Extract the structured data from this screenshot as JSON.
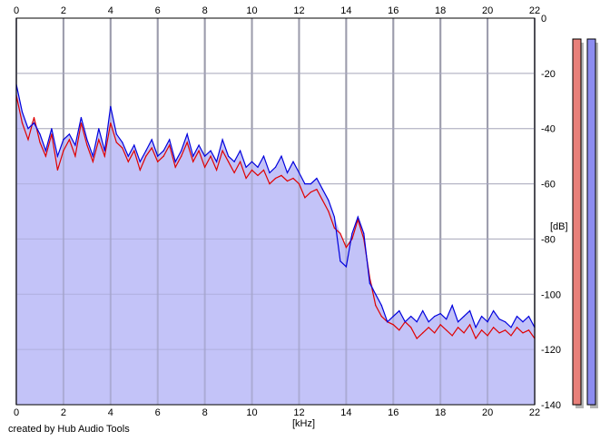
{
  "chart_data": {
    "type": "area",
    "x_axis": {
      "label": "[kHz]",
      "range": [
        0,
        22
      ],
      "ticks": [
        0,
        2,
        4,
        6,
        8,
        10,
        12,
        14,
        16,
        18,
        20,
        22
      ]
    },
    "y_axis": {
      "label": "[dB]",
      "range": [
        -140,
        0
      ],
      "ticks": [
        0,
        -20,
        -40,
        -60,
        -80,
        -100,
        -120,
        -140
      ]
    },
    "grid": true,
    "series": [
      {
        "channel_color": "#e8807a",
        "line_color": "#e00000",
        "x": [
          0,
          0.25,
          0.5,
          0.75,
          1,
          1.25,
          1.5,
          1.75,
          2,
          2.25,
          2.5,
          2.75,
          3,
          3.25,
          3.5,
          3.75,
          4,
          4.25,
          4.5,
          4.75,
          5,
          5.25,
          5.5,
          5.75,
          6,
          6.25,
          6.5,
          6.75,
          7,
          7.25,
          7.5,
          7.75,
          8,
          8.25,
          8.5,
          8.75,
          9,
          9.25,
          9.5,
          9.75,
          10,
          10.25,
          10.5,
          10.75,
          11,
          11.25,
          11.5,
          11.75,
          12,
          12.25,
          12.5,
          12.75,
          13,
          13.25,
          13.5,
          13.75,
          14,
          14.25,
          14.5,
          14.75,
          15,
          15.25,
          15.5,
          15.75,
          16,
          16.25,
          16.5,
          16.75,
          17,
          17.25,
          17.5,
          17.75,
          18,
          18.25,
          18.5,
          18.75,
          19,
          19.25,
          19.5,
          19.75,
          20,
          20.25,
          20.5,
          20.75,
          21,
          21.25,
          21.5,
          21.75,
          22
        ],
        "values": [
          -28,
          -38,
          -44,
          -36,
          -45,
          -50,
          -42,
          -55,
          -48,
          -44,
          -50,
          -38,
          -46,
          -52,
          -44,
          -50,
          -38,
          -45,
          -47,
          -52,
          -48,
          -55,
          -50,
          -47,
          -52,
          -50,
          -46,
          -54,
          -50,
          -45,
          -52,
          -48,
          -54,
          -50,
          -55,
          -48,
          -52,
          -56,
          -52,
          -58,
          -55,
          -57,
          -55,
          -60,
          -58,
          -57,
          -59,
          -58,
          -60,
          -65,
          -63,
          -62,
          -66,
          -70,
          -76,
          -78,
          -83,
          -80,
          -73,
          -80,
          -94,
          -104,
          -108,
          -110,
          -111,
          -113,
          -110,
          -112,
          -116,
          -114,
          -112,
          -114,
          -111,
          -113,
          -115,
          -112,
          -114,
          -111,
          -116,
          -113,
          -115,
          -112,
          -114,
          -113,
          -115,
          -112,
          -114,
          -113,
          -116
        ]
      },
      {
        "channel_color": "#8c8cf0",
        "line_color": "#0000dd",
        "x": [
          0,
          0.25,
          0.5,
          0.75,
          1,
          1.25,
          1.5,
          1.75,
          2,
          2.25,
          2.5,
          2.75,
          3,
          3.25,
          3.5,
          3.75,
          4,
          4.25,
          4.5,
          4.75,
          5,
          5.25,
          5.5,
          5.75,
          6,
          6.25,
          6.5,
          6.75,
          7,
          7.25,
          7.5,
          7.75,
          8,
          8.25,
          8.5,
          8.75,
          9,
          9.25,
          9.5,
          9.75,
          10,
          10.25,
          10.5,
          10.75,
          11,
          11.25,
          11.5,
          11.75,
          12,
          12.25,
          12.5,
          12.75,
          13,
          13.25,
          13.5,
          13.75,
          14,
          14.25,
          14.5,
          14.75,
          15,
          15.25,
          15.5,
          15.75,
          16,
          16.25,
          16.5,
          16.75,
          17,
          17.25,
          17.5,
          17.75,
          18,
          18.25,
          18.5,
          18.75,
          19,
          19.25,
          19.5,
          19.75,
          20,
          20.25,
          20.5,
          20.75,
          21,
          21.25,
          21.5,
          21.75,
          22
        ],
        "values": [
          -24,
          -34,
          -40,
          -38,
          -42,
          -48,
          -40,
          -50,
          -44,
          -42,
          -46,
          -36,
          -44,
          -50,
          -40,
          -48,
          -32,
          -42,
          -45,
          -50,
          -46,
          -52,
          -48,
          -44,
          -50,
          -48,
          -44,
          -52,
          -48,
          -42,
          -50,
          -46,
          -50,
          -48,
          -52,
          -44,
          -50,
          -52,
          -48,
          -54,
          -52,
          -54,
          -50,
          -56,
          -54,
          -50,
          -56,
          -52,
          -56,
          -60,
          -60,
          -58,
          -62,
          -66,
          -72,
          -88,
          -90,
          -78,
          -72,
          -78,
          -96,
          -100,
          -104,
          -110,
          -108,
          -106,
          -110,
          -108,
          -110,
          -106,
          -110,
          -108,
          -107,
          -109,
          -104,
          -110,
          -108,
          -106,
          -112,
          -108,
          -110,
          -106,
          -109,
          -110,
          -112,
          -108,
          -110,
          -108,
          -112
        ]
      }
    ],
    "legend": "none"
  },
  "xlabel_text": "[kHz]",
  "ylabel_text": "[dB]",
  "credit": "created by Hub Audio Tools"
}
